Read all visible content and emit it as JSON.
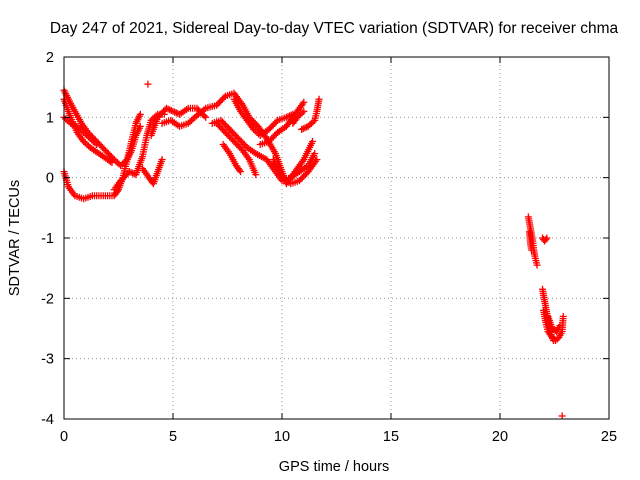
{
  "chart_data": {
    "type": "scatter",
    "title": "Day 247 of 2021, Sidereal Day-to-day VTEC variation (SDTVAR) for receiver chma",
    "xlabel": "GPS time / hours",
    "ylabel": "SDTVAR / TECUs",
    "xlim": [
      0,
      25
    ],
    "ylim": [
      -4,
      2
    ],
    "xticks": [
      0,
      5,
      10,
      15,
      20,
      25
    ],
    "yticks": [
      -4,
      -3,
      -2,
      -1,
      0,
      1,
      2
    ],
    "grid": true,
    "marker": "+",
    "series_color": "#ff0000",
    "series": [
      {
        "name": "SDTVAR",
        "tracks": [
          [
            [
              0.0,
              1.45
            ],
            [
              0.2,
              1.3
            ],
            [
              0.5,
              1.1
            ],
            [
              0.8,
              0.9
            ],
            [
              1.1,
              0.75
            ],
            [
              1.5,
              0.6
            ],
            [
              1.9,
              0.45
            ],
            [
              2.3,
              0.3
            ],
            [
              2.6,
              0.2
            ],
            [
              2.9,
              0.3
            ],
            [
              3.1,
              0.45
            ],
            [
              3.3,
              0.7
            ],
            [
              3.5,
              0.85
            ]
          ],
          [
            [
              0.0,
              1.3
            ],
            [
              0.3,
              1.0
            ],
            [
              0.6,
              0.75
            ],
            [
              0.9,
              0.6
            ],
            [
              1.2,
              0.5
            ],
            [
              1.6,
              0.4
            ],
            [
              2.0,
              0.3
            ],
            [
              2.2,
              0.25
            ]
          ],
          [
            [
              0.0,
              1.0
            ],
            [
              0.3,
              0.9
            ],
            [
              0.6,
              0.85
            ],
            [
              0.9,
              0.75
            ],
            [
              1.2,
              0.65
            ],
            [
              1.5,
              0.55
            ]
          ],
          [
            [
              0.0,
              0.1
            ],
            [
              0.2,
              -0.15
            ],
            [
              0.5,
              -0.3
            ],
            [
              0.9,
              -0.35
            ],
            [
              1.3,
              -0.3
            ],
            [
              1.8,
              -0.3
            ],
            [
              2.3,
              -0.3
            ],
            [
              2.5,
              -0.2
            ],
            [
              2.7,
              0.0
            ],
            [
              2.9,
              0.3
            ],
            [
              3.1,
              0.6
            ],
            [
              3.3,
              0.9
            ],
            [
              3.5,
              1.05
            ]
          ],
          [
            [
              2.3,
              -0.2
            ],
            [
              2.6,
              -0.05
            ],
            [
              3.0,
              0.1
            ],
            [
              3.3,
              0.05
            ],
            [
              3.6,
              0.35
            ],
            [
              3.8,
              0.7
            ],
            [
              4.0,
              0.95
            ],
            [
              4.3,
              1.05
            ],
            [
              4.6,
              1.05
            ]
          ],
          [
            [
              3.6,
              0.15
            ],
            [
              3.9,
              0.0
            ],
            [
              4.1,
              -0.1
            ],
            [
              4.3,
              0.1
            ],
            [
              4.5,
              0.3
            ]
          ],
          [
            [
              4.0,
              0.7
            ],
            [
              4.3,
              1.0
            ],
            [
              4.7,
              1.15
            ],
            [
              5.0,
              1.1
            ],
            [
              5.3,
              1.05
            ],
            [
              5.7,
              1.15
            ],
            [
              6.1,
              1.15
            ],
            [
              6.5,
              1.0
            ]
          ],
          [
            [
              4.5,
              0.9
            ],
            [
              4.9,
              0.95
            ],
            [
              5.3,
              0.85
            ],
            [
              5.7,
              0.9
            ],
            [
              6.0,
              1.0
            ],
            [
              6.5,
              1.15
            ],
            [
              7.0,
              1.2
            ],
            [
              7.4,
              1.35
            ],
            [
              7.8,
              1.4
            ],
            [
              8.2,
              1.2
            ],
            [
              8.5,
              1.0
            ],
            [
              8.9,
              0.85
            ],
            [
              9.3,
              0.65
            ],
            [
              9.7,
              0.4
            ],
            [
              10.0,
              0.1
            ],
            [
              10.2,
              -0.1
            ],
            [
              10.6,
              0.1
            ],
            [
              11.0,
              0.3
            ],
            [
              11.4,
              0.6
            ]
          ],
          [
            [
              7.0,
              0.9
            ],
            [
              7.4,
              0.75
            ],
            [
              7.8,
              0.6
            ],
            [
              8.2,
              0.45
            ],
            [
              8.5,
              0.3
            ],
            [
              8.8,
              0.05
            ]
          ],
          [
            [
              7.3,
              0.55
            ],
            [
              7.6,
              0.4
            ],
            [
              7.9,
              0.2
            ],
            [
              8.1,
              0.1
            ]
          ],
          [
            [
              6.8,
              0.9
            ],
            [
              7.2,
              0.95
            ],
            [
              7.6,
              0.8
            ],
            [
              8.0,
              0.65
            ],
            [
              8.4,
              0.5
            ],
            [
              8.8,
              0.4
            ],
            [
              9.3,
              0.3
            ],
            [
              9.7,
              0.1
            ],
            [
              10.0,
              -0.05
            ],
            [
              10.4,
              0.0
            ],
            [
              10.8,
              0.1
            ],
            [
              11.2,
              0.2
            ],
            [
              11.5,
              0.4
            ]
          ],
          [
            [
              7.8,
              1.3
            ],
            [
              8.1,
              1.1
            ],
            [
              8.4,
              0.95
            ],
            [
              8.7,
              0.8
            ],
            [
              9.0,
              0.7
            ],
            [
              9.4,
              0.8
            ],
            [
              9.8,
              0.95
            ],
            [
              10.2,
              1.0
            ],
            [
              10.5,
              1.05
            ]
          ],
          [
            [
              9.0,
              0.55
            ],
            [
              9.4,
              0.6
            ],
            [
              9.8,
              0.75
            ],
            [
              10.2,
              0.85
            ],
            [
              10.6,
              1.05
            ],
            [
              11.0,
              1.25
            ]
          ],
          [
            [
              9.6,
              0.3
            ],
            [
              10.0,
              0.0
            ],
            [
              10.4,
              -0.1
            ],
            [
              10.8,
              -0.05
            ],
            [
              11.2,
              0.1
            ],
            [
              11.6,
              0.3
            ]
          ],
          [
            [
              10.9,
              0.8
            ],
            [
              11.2,
              0.85
            ],
            [
              11.5,
              0.95
            ],
            [
              11.6,
              1.1
            ],
            [
              11.7,
              1.3
            ]
          ],
          [
            [
              10.5,
              0.9
            ],
            [
              10.7,
              1.0
            ],
            [
              11.0,
              1.1
            ]
          ],
          [
            [
              21.3,
              -0.65
            ],
            [
              21.4,
              -0.85
            ],
            [
              21.5,
              -1.05
            ],
            [
              21.55,
              -1.2
            ],
            [
              21.6,
              -1.3
            ],
            [
              21.7,
              -1.45
            ]
          ],
          [
            [
              21.35,
              -0.9
            ],
            [
              21.4,
              -1.1
            ],
            [
              21.45,
              -1.2
            ]
          ],
          [
            [
              21.95,
              -1.0
            ],
            [
              22.05,
              -1.05
            ],
            [
              22.15,
              -1.0
            ]
          ],
          [
            [
              21.95,
              -1.85
            ],
            [
              22.05,
              -2.05
            ],
            [
              22.15,
              -2.25
            ],
            [
              22.25,
              -2.45
            ],
            [
              22.35,
              -2.6
            ],
            [
              22.45,
              -2.7
            ]
          ],
          [
            [
              22.0,
              -2.2
            ],
            [
              22.1,
              -2.4
            ],
            [
              22.2,
              -2.55
            ],
            [
              22.4,
              -2.65
            ],
            [
              22.55,
              -2.7
            ],
            [
              22.7,
              -2.65
            ],
            [
              22.85,
              -2.55
            ],
            [
              22.9,
              -2.3
            ]
          ],
          [
            [
              22.2,
              -2.3
            ],
            [
              22.4,
              -2.5
            ],
            [
              22.6,
              -2.55
            ],
            [
              22.75,
              -2.45
            ]
          ]
        ],
        "isolated_points": [
          [
            3.85,
            1.55
          ],
          [
            22.85,
            -3.95
          ]
        ]
      }
    ]
  }
}
